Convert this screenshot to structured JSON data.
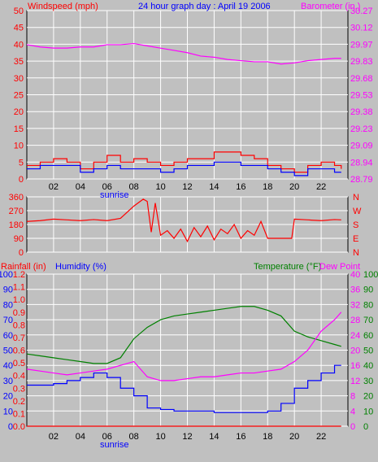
{
  "title": "24 hour graph day : April 19 2006",
  "colors": {
    "background": "#c0c0c0",
    "plot": "#c0c0c0",
    "grid": "#ffffff",
    "wind": "#ff0000",
    "windAvg": "#0000ff",
    "baro": "#ff00ff",
    "rain": "#ff0000",
    "humidity": "#0000ff",
    "temp": "#008000",
    "dew": "#ff00ff",
    "axisText": "#000000",
    "sunrise": "#0000ff"
  },
  "x_ticks": [
    "02",
    "04",
    "06",
    "08",
    "10",
    "12",
    "14",
    "16",
    "18",
    "20",
    "22"
  ],
  "sunrise_label": "sunrise",
  "chart_data": [
    {
      "type": "line",
      "ylabel_left": "Windspeed (mph)",
      "ylabel_right": "Barometer (in.)",
      "ylim": [
        0,
        50
      ],
      "yticks_left": [
        0,
        5,
        10,
        15,
        20,
        25,
        30,
        35,
        40,
        45,
        50
      ],
      "yticks_right": [
        "28.79",
        "28.94",
        "29.09",
        "29.23",
        "29.38",
        "29.53",
        "29.68",
        "29.83",
        "29.97",
        "30.12",
        "30.27"
      ],
      "x": [
        0,
        1,
        2,
        3,
        4,
        5,
        6,
        7,
        8,
        9,
        10,
        11,
        12,
        13,
        14,
        15,
        16,
        17,
        18,
        19,
        20,
        21,
        22,
        23,
        23.5
      ],
      "series": [
        {
          "name": "Windspeed",
          "values": [
            4,
            5,
            6,
            5,
            3,
            5,
            7,
            5,
            6,
            5,
            4,
            5,
            6,
            6,
            8,
            8,
            7,
            6,
            4,
            3,
            2,
            4,
            5,
            4,
            3
          ]
        },
        {
          "name": "Wind avg",
          "values": [
            3,
            4,
            4,
            4,
            2,
            3,
            4,
            3,
            3,
            3,
            2,
            3,
            4,
            4,
            5,
            5,
            4,
            4,
            3,
            2,
            1,
            3,
            3,
            2,
            2
          ]
        },
        {
          "name": "Barometer",
          "values": [
            29.97,
            29.95,
            29.94,
            29.94,
            29.95,
            29.95,
            29.97,
            29.97,
            29.98,
            29.96,
            29.94,
            29.92,
            29.9,
            29.87,
            29.86,
            29.84,
            29.83,
            29.82,
            29.82,
            29.8,
            29.81,
            29.83,
            29.84,
            29.85,
            29.85
          ]
        }
      ]
    },
    {
      "type": "line",
      "ylim": [
        0,
        360
      ],
      "yticks_left": [
        0,
        90,
        180,
        270,
        360
      ],
      "yticks_right": [
        "N",
        "W",
        "S",
        "E",
        "N"
      ],
      "x": [
        0,
        1,
        2,
        3,
        4,
        5,
        6,
        7,
        8,
        8.7,
        9,
        9.3,
        9.6,
        10,
        10.5,
        11,
        11.5,
        12,
        12.5,
        13,
        13.5,
        14,
        14.5,
        15,
        15.5,
        16,
        16.5,
        17,
        17.5,
        18,
        19,
        19.8,
        20,
        21,
        22,
        23,
        23.5
      ],
      "series": [
        {
          "name": "Wind direction",
          "values": [
            200,
            205,
            215,
            210,
            205,
            212,
            205,
            220,
            300,
            345,
            330,
            130,
            320,
            110,
            140,
            90,
            150,
            70,
            160,
            100,
            170,
            80,
            150,
            120,
            180,
            90,
            140,
            110,
            200,
            90,
            90,
            90,
            215,
            210,
            205,
            212,
            210
          ]
        }
      ]
    },
    {
      "type": "line",
      "ylabel_left": "Rainfall (in)",
      "ylabel_left2": "Humidity (%)",
      "ylabel_right": "Temperature (°F)",
      "ylabel_right2": "Dew Point",
      "ylim": [
        0,
        100
      ],
      "yticks_left": [
        0,
        10,
        20,
        30,
        40,
        50,
        60,
        70,
        80,
        90,
        100
      ],
      "yticks_rain": [
        "0.0",
        "0.1",
        "0.2",
        "0.3",
        "0.4",
        "0.5",
        "0.6",
        "0.7",
        "0.8",
        "0.9",
        "1.0",
        "1.1",
        "1.2"
      ],
      "yticks_right": [
        0,
        4,
        8,
        12,
        16,
        20,
        24,
        28,
        32,
        36,
        40
      ],
      "yticks_right2": [
        0,
        10,
        20,
        30,
        40,
        50,
        60,
        70,
        80,
        90,
        100
      ],
      "x": [
        0,
        1,
        2,
        3,
        4,
        5,
        6,
        7,
        8,
        9,
        10,
        11,
        12,
        13,
        14,
        15,
        16,
        17,
        18,
        19,
        20,
        21,
        22,
        23,
        23.5
      ],
      "series": [
        {
          "name": "Rainfall",
          "values": [
            0,
            0,
            0,
            0,
            0,
            0,
            0,
            0,
            0,
            0,
            0,
            0,
            0,
            0,
            0,
            0,
            0,
            0,
            0,
            0,
            0,
            0,
            0,
            0,
            0
          ]
        },
        {
          "name": "Humidity",
          "values": [
            27,
            27,
            28,
            30,
            32,
            35,
            32,
            25,
            20,
            12,
            11,
            10,
            10,
            10,
            9,
            9,
            9,
            9,
            10,
            15,
            25,
            30,
            35,
            40,
            40
          ]
        },
        {
          "name": "Temperature",
          "values": [
            19,
            18.5,
            18,
            17.5,
            17,
            16.5,
            16.5,
            18,
            23,
            26,
            28,
            29,
            29.5,
            30,
            30.5,
            31,
            31.5,
            31.5,
            30.5,
            29,
            25,
            23.5,
            22.5,
            21.5,
            21
          ]
        },
        {
          "name": "Dew Point",
          "values": [
            15,
            14.5,
            14,
            13.5,
            14,
            14.5,
            15,
            16,
            17,
            13,
            12,
            12,
            12.5,
            13,
            13,
            13.5,
            14,
            14,
            14.5,
            15,
            17,
            20,
            25,
            28,
            30
          ]
        }
      ]
    }
  ]
}
